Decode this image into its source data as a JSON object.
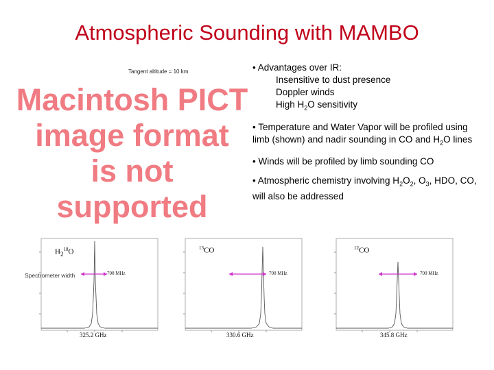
{
  "slide": {
    "title": "Atmospheric Sounding with MAMBO",
    "placeholder": {
      "line1": "Macintosh PICT",
      "line2": "image format",
      "line3": "is not supported"
    },
    "tangent_label": "Tangent altitude = 10 km",
    "bullets": {
      "b1": "• Advantages over IR:",
      "b1_sub1": "Insensitive to dust presence",
      "b1_sub2": "Doppler winds",
      "b1_sub3_a": "High H",
      "b1_sub3_sub": "2",
      "b1_sub3_b": "O sensitivity",
      "b2_a": "• Temperature and Water Vapor will be profiled using limb (shown) and nadir sounding in CO and H",
      "b2_sub": "2",
      "b2_b": "O lines",
      "b3": "• Winds will be profiled by limb sounding CO",
      "b4_a": "• Atmospheric chemistry involving H",
      "b4_sub1": "2",
      "b4_b": "O",
      "b4_sub2": "2",
      "b4_c": ", O",
      "b4_sub3": "3",
      "b4_d": ", HDO, CO, will also be addressed"
    }
  },
  "spectrometer_width_label": "Spectrometer width",
  "spectra": [
    {
      "species_main": "H",
      "species_sub": "2",
      "species_sup": "18",
      "species_tail": "O",
      "bandwidth": "700 MHz",
      "center": "325.2 GHz"
    },
    {
      "species_main": "",
      "species_sub": "",
      "species_sup": "13",
      "species_tail": "CO",
      "bandwidth": "700 MHz",
      "center": "330.6 GHz"
    },
    {
      "species_main": "",
      "species_sub": "",
      "species_sup": "12",
      "species_tail": "CO",
      "bandwidth": "700 MHz",
      "center": "345.8 GHz"
    }
  ],
  "colors": {
    "title": "#c0001a",
    "placeholder": "#f07b82",
    "bandwidth_arrow": "#cc33cc"
  }
}
